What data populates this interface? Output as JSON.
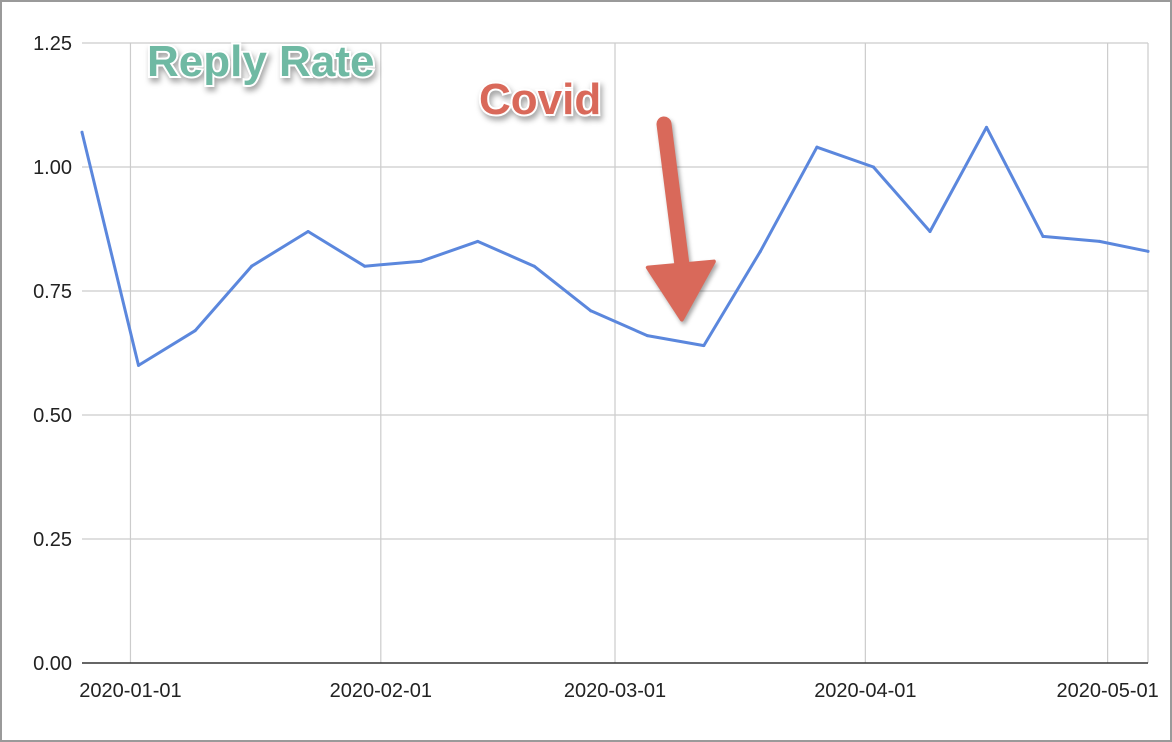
{
  "chart_data": {
    "type": "line",
    "title": "Reply Rate",
    "annotation": {
      "label": "Covid",
      "date": "2020-03-12",
      "value": 0.64,
      "color": "#d9695a"
    },
    "title_color": "#6fb9a3",
    "line_color": "#5b87dd",
    "grid": true,
    "legend": "none",
    "xlabel": "",
    "ylabel": "",
    "ylim": [
      0,
      1.25
    ],
    "yticks": [
      "0.00",
      "0.25",
      "0.50",
      "0.75",
      "1.00",
      "1.25"
    ],
    "xticks": [
      "2020-01-01",
      "2020-02-01",
      "2020-03-01",
      "2020-04-01",
      "2020-05-01"
    ],
    "xlim": [
      "2019-12-26",
      "2020-05-06"
    ],
    "series": [
      {
        "x": [
          "2019-12-26",
          "2020-01-02",
          "2020-01-09",
          "2020-01-16",
          "2020-01-23",
          "2020-01-30",
          "2020-02-06",
          "2020-02-13",
          "2020-02-20",
          "2020-02-27",
          "2020-03-05",
          "2020-03-12",
          "2020-03-19",
          "2020-03-26",
          "2020-04-02",
          "2020-04-09",
          "2020-04-16",
          "2020-04-23",
          "2020-04-30",
          "2020-05-06"
        ],
        "values": [
          1.07,
          0.6,
          0.67,
          0.8,
          0.87,
          0.8,
          0.81,
          0.85,
          0.8,
          0.71,
          0.66,
          0.64,
          0.83,
          1.04,
          1.0,
          0.87,
          1.08,
          0.86,
          0.85,
          0.83
        ]
      }
    ]
  }
}
